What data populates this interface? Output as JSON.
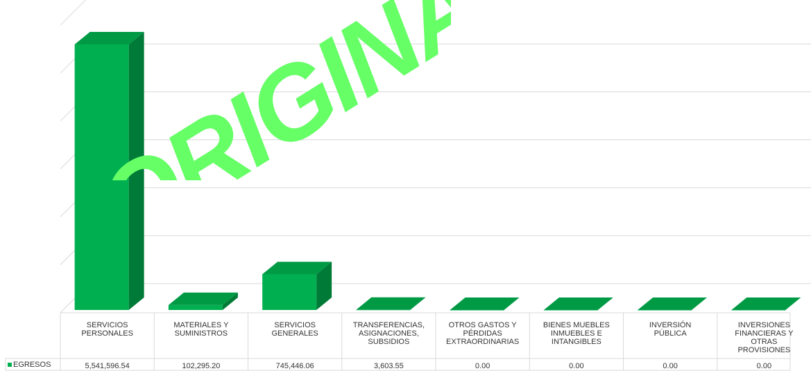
{
  "watermark": {
    "text": "ORIGINAL",
    "color": "#66ff66"
  },
  "chart_data": {
    "type": "bar",
    "categories": [
      "SERVICIOS\nPERSONALES",
      "MATERIALES Y\nSUMINISTROS",
      "SERVICIOS\nGENERALES",
      "TRANSFERENCIAS,\nASIGNACIONES,\nSUBSIDIOS",
      "OTROS GASTOS Y\nPÉRDIDAS\nEXTRAORDINARIAS",
      "BIENES MUEBLES\nINMUEBLES E\nINTANGIBLES",
      "INVERSIÓN\nPÚBLICA",
      "INVERSIONES\nFINANCIERAS Y\nOTRAS\nPROVISIONES"
    ],
    "series": [
      {
        "name": "EGRESOS",
        "values": [
          5541596.54,
          102295.2,
          745446.06,
          3603.55,
          0,
          0,
          0,
          0
        ],
        "labels": [
          "5,541,596.54",
          "102,295.20",
          "745,446.06",
          "3,603.55",
          "0.00",
          "0.00",
          "0.00",
          "0.00"
        ],
        "color": "#00b050",
        "side_color": "#007a37",
        "top_color": "#009a45"
      }
    ],
    "ylim": [
      0,
      6000000
    ],
    "grid": true,
    "legend": "data-table",
    "three_d": true
  }
}
